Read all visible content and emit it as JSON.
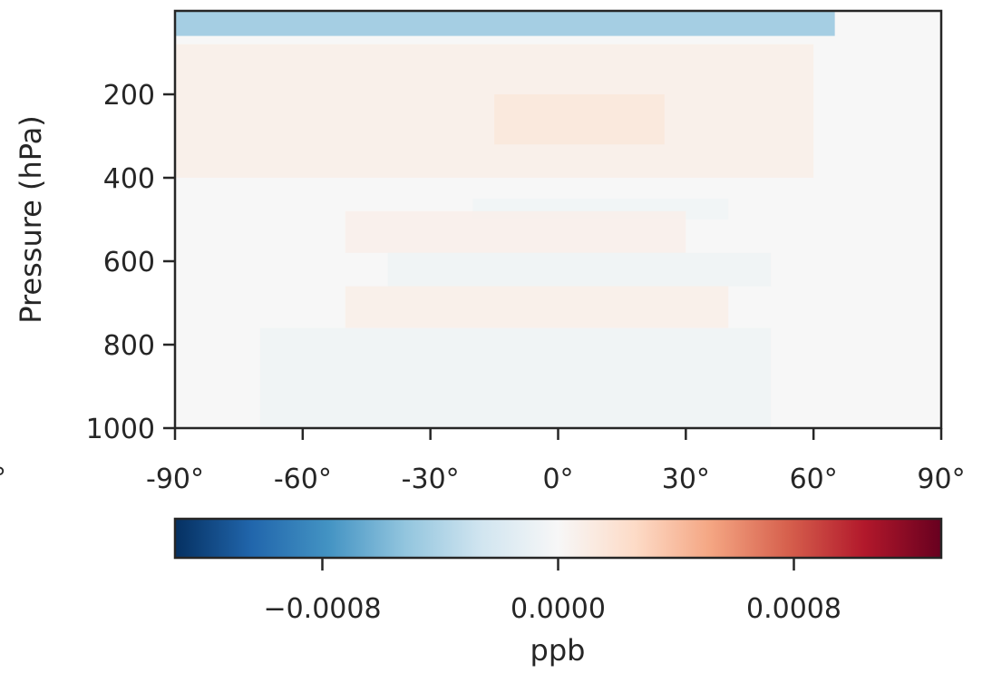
{
  "chart_data": {
    "type": "heatmap",
    "title": "",
    "xlabel": "",
    "ylabel": "Pressure (hPa)",
    "x_range": [
      -90,
      90
    ],
    "y_range": [
      1000,
      0
    ],
    "x_ticks": [
      -90,
      -60,
      -30,
      0,
      30,
      60,
      90
    ],
    "x_tick_labels": [
      "-90°",
      "-60°",
      "-30°",
      "0°",
      "30°",
      "60°",
      "90°"
    ],
    "y_ticks": [
      200,
      400,
      600,
      800,
      1000
    ],
    "y_tick_labels": [
      "200",
      "400",
      "600",
      "800",
      "1000"
    ],
    "colormap": "RdBu_r",
    "colorbar": {
      "label": "ppb",
      "range": [
        -0.0013,
        0.0013
      ],
      "ticks": [
        -0.0008,
        0.0,
        0.0008
      ],
      "tick_labels": [
        "−0.0008",
        "0.0000",
        "0.0008"
      ]
    },
    "features": [
      {
        "description": "strong negative layer at top",
        "lat_range": [
          -90,
          65
        ],
        "pressure_range": [
          0,
          60
        ],
        "value": -0.0005
      },
      {
        "description": "positive band upper troposphere",
        "lat_range": [
          -90,
          60
        ],
        "pressure_range": [
          80,
          400
        ],
        "value": 8e-05
      },
      {
        "description": "positive core near equator",
        "lat_range": [
          -15,
          25
        ],
        "pressure_range": [
          200,
          320
        ],
        "value": 0.00015
      },
      {
        "description": "weak negative band",
        "lat_range": [
          -20,
          40
        ],
        "pressure_range": [
          450,
          500
        ],
        "value": -5e-05
      },
      {
        "description": "positive band",
        "lat_range": [
          -50,
          30
        ],
        "pressure_range": [
          480,
          580
        ],
        "value": 7e-05
      },
      {
        "description": "negative band",
        "lat_range": [
          -40,
          50
        ],
        "pressure_range": [
          580,
          660
        ],
        "value": -6e-05
      },
      {
        "description": "positive band lower troposphere",
        "lat_range": [
          -50,
          40
        ],
        "pressure_range": [
          660,
          760
        ],
        "value": 8e-05
      },
      {
        "description": "negative near surface",
        "lat_range": [
          -70,
          50
        ],
        "pressure_range": [
          760,
          1000
        ],
        "value": -6e-05
      }
    ]
  }
}
